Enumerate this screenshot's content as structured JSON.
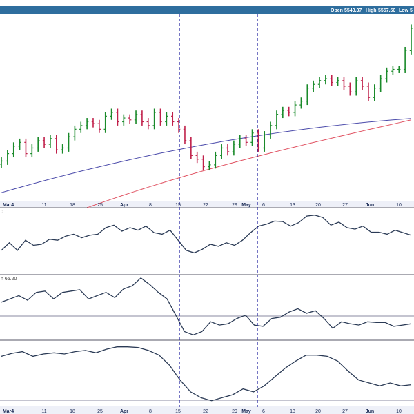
{
  "header": {
    "open_label": "Open",
    "open_value": "5543.37",
    "high_label": "High",
    "high_value": "5557.50",
    "low_label": "Low",
    "low_value": "5"
  },
  "colors": {
    "header_bg": "#2e6e9e",
    "up_bar": "#1a8a2a",
    "down_bar": "#c0204a",
    "ma_fast": "#4a4aaa",
    "ma_slow": "#e05060",
    "marker_line": "#1c1c9c",
    "indicator_line": "#2a3a55",
    "grid": "#a8a8b8",
    "axis_strip": "#eef0f8"
  },
  "panel_labels": {
    "panel2": "0",
    "panel3": "n 65.20"
  },
  "chart_data": [
    {
      "type": "ohlc",
      "title": "",
      "date_ticks": [
        {
          "label": "Mar4",
          "month": true
        },
        {
          "label": "11",
          "month": false
        },
        {
          "label": "18",
          "month": false
        },
        {
          "label": "25",
          "month": false
        },
        {
          "label": "Apr",
          "month": true
        },
        {
          "label": "8",
          "month": false
        },
        {
          "label": "15",
          "month": false
        },
        {
          "label": "22",
          "month": false
        },
        {
          "label": "29",
          "month": false
        },
        {
          "label": "May",
          "month": true
        },
        {
          "label": "6",
          "month": false
        },
        {
          "label": "13",
          "month": false
        },
        {
          "label": "20",
          "month": false
        },
        {
          "label": "27",
          "month": false
        },
        {
          "label": "Jun",
          "month": true
        },
        {
          "label": "10",
          "month": false
        }
      ],
      "markers": [
        "15",
        "May"
      ],
      "close_values": [
        5045,
        5065,
        5085,
        5095,
        5065,
        5080,
        5100,
        5090,
        5105,
        5075,
        5080,
        5110,
        5130,
        5140,
        5150,
        5145,
        5130,
        5165,
        5175,
        5150,
        5160,
        5155,
        5170,
        5150,
        5140,
        5175,
        5150,
        5165,
        5150,
        5130,
        5100,
        5060,
        5050,
        5030,
        5035,
        5060,
        5080,
        5070,
        5090,
        5105,
        5095,
        5120,
        5080,
        5115,
        5140,
        5170,
        5180,
        5175,
        5195,
        5205,
        5240,
        5250,
        5260,
        5265,
        5255,
        5260,
        5245,
        5230,
        5260,
        5245,
        5215,
        5240,
        5265,
        5285,
        5290,
        5290,
        5340,
        5400
      ],
      "series": [
        {
          "values_note": "",
          "line": "ma_fast"
        },
        {
          "values_note": "",
          "line": "ma_slow"
        }
      ]
    },
    {
      "type": "line",
      "values": [
        40,
        55,
        40,
        60,
        50,
        52,
        62,
        60,
        68,
        72,
        65,
        70,
        72,
        85,
        90,
        78,
        85,
        80,
        88,
        75,
        72,
        80,
        60,
        40,
        35,
        42,
        52,
        48,
        55,
        50,
        60,
        75,
        88,
        92,
        98,
        97,
        88,
        95,
        108,
        110,
        105,
        90,
        96,
        85,
        82,
        88,
        76,
        76,
        72,
        80,
        75,
        70
      ]
    },
    {
      "type": "line",
      "values": [
        55,
        60,
        65,
        58,
        70,
        72,
        60,
        70,
        72,
        74,
        60,
        65,
        70,
        62,
        75,
        80,
        92,
        82,
        70,
        60,
        35,
        10,
        5,
        10,
        25,
        20,
        22,
        30,
        35,
        20,
        18,
        30,
        32,
        40,
        45,
        38,
        42,
        30,
        15,
        25,
        22,
        20,
        25,
        24,
        24,
        18,
        20,
        22
      ]
    },
    {
      "type": "line",
      "values": [
        70,
        75,
        78,
        70,
        74,
        76,
        74,
        78,
        80,
        76,
        82,
        86,
        86,
        85,
        80,
        72,
        55,
        30,
        10,
        0,
        -5,
        0,
        5,
        15,
        10,
        20,
        35,
        50,
        62,
        72,
        72,
        70,
        62,
        45,
        30,
        25,
        20,
        25,
        20,
        22
      ]
    }
  ]
}
